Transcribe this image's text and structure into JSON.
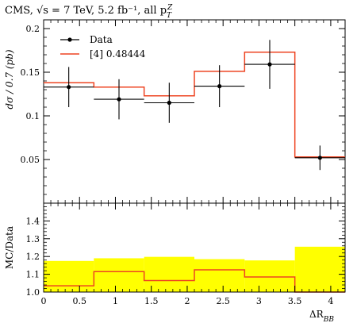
{
  "title": "CMS, √s = 7 TeV, 5.2 fb⁻¹, all p",
  "title_sub": "T",
  "title_sup": "Z",
  "chart_data": [
    {
      "type": "line",
      "name": "main-panel",
      "ylabel": "dσ / 0.7 (pb)",
      "xlim": [
        0,
        4.2
      ],
      "ylim": [
        0,
        0.21
      ],
      "yticks": [
        0.05,
        0.1,
        0.15,
        0.2
      ],
      "ytick_labels": [
        "0.05",
        "0.1",
        "0.15",
        "0.2"
      ],
      "bin_edges": [
        0,
        0.7,
        1.4,
        2.1,
        2.8,
        3.5,
        4.2
      ],
      "series": [
        {
          "name": "Data",
          "kind": "points",
          "color": "#000000",
          "x": [
            0.35,
            1.05,
            1.75,
            2.45,
            3.15,
            3.85
          ],
          "y": [
            0.133,
            0.119,
            0.115,
            0.134,
            0.159,
            0.052
          ],
          "yerr": [
            0.023,
            0.023,
            0.023,
            0.024,
            0.028,
            0.014
          ]
        },
        {
          "name": "[4] 0.48444",
          "kind": "step",
          "color": "#ee4422",
          "values": [
            0.138,
            0.133,
            0.123,
            0.151,
            0.173,
            0.053
          ]
        }
      ],
      "legend": "top-left"
    },
    {
      "type": "line",
      "name": "ratio-panel",
      "ylabel": "MC/Data",
      "xlabel": "ΔR",
      "xlabel_sub": "BB",
      "xlim": [
        0,
        4.2
      ],
      "ylim": [
        1.0,
        1.5
      ],
      "xticks": [
        0,
        0.5,
        1,
        1.5,
        2,
        2.5,
        3,
        3.5,
        4
      ],
      "xtick_labels": [
        "0",
        "0.5",
        "1",
        "1.5",
        "2",
        "2.5",
        "3",
        "3.5",
        "4"
      ],
      "yticks": [
        1.0,
        1.1,
        1.2,
        1.3,
        1.4
      ],
      "ytick_labels": [
        "1.0",
        "1.1",
        "1.2",
        "1.3",
        "1.4"
      ],
      "bin_edges": [
        0,
        0.7,
        1.4,
        2.1,
        2.8,
        3.5,
        4.2
      ],
      "band_color": "#ffff00",
      "band_upper": [
        1.175,
        1.19,
        1.198,
        1.185,
        1.178,
        1.255
      ],
      "ratio_values": [
        1.035,
        1.115,
        1.065,
        1.125,
        1.085,
        1.0
      ]
    }
  ]
}
